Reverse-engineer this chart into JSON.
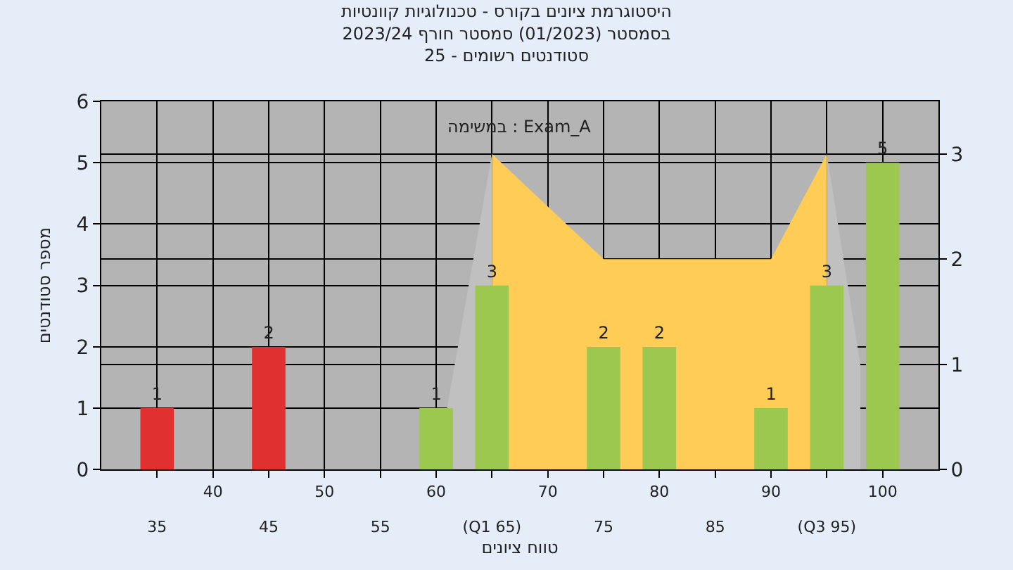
{
  "chart_data": {
    "type": "bar",
    "title": "היסטוגרמת ציונים בקורס - טכנולוגיות קוונטיות\nבסמסטר (01/2023) סמסטר חורף 2023/24\nסטודנטים רשומים - 25",
    "xlabel": "טווח ציונים",
    "ylabel": "מספר סטודנטים",
    "annotations": [
      "במשימה : Exam_A"
    ],
    "x": [
      35,
      45,
      60,
      65,
      75,
      80,
      90,
      95,
      100
    ],
    "series": [
      {
        "type": "area",
        "axis": "y2",
        "color": "#c0c0c0",
        "x": [
          60,
          65
        ],
        "values": [
          0,
          3
        ]
      },
      {
        "type": "area",
        "axis": "y2",
        "color": "#c0c0c0",
        "x": [
          95,
          98
        ],
        "values": [
          3,
          1
        ]
      },
      {
        "type": "area",
        "axis": "y2",
        "color": "#ffcc55",
        "x": [
          65,
          75,
          90,
          95
        ],
        "values": [
          3,
          2,
          2,
          3
        ]
      },
      {
        "values": [
          1,
          2,
          1,
          3,
          2,
          2,
          1,
          3,
          5
        ],
        "colors": [
          "#e03030",
          "#e03030",
          "#9cc850",
          "#9cc850",
          "#9cc850",
          "#9cc850",
          "#9cc850",
          "#9cc850",
          "#9cc850"
        ],
        "value_labels": [
          "1",
          "2",
          "1",
          "3",
          "2",
          "2",
          "1",
          "3",
          "5"
        ]
      }
    ],
    "xlim": [
      30,
      105
    ],
    "xticks": [
      {
        "value": 35,
        "label": null
      },
      40,
      {
        "value": 45,
        "label": null
      },
      50,
      {
        "value": 55,
        "label": null
      },
      60,
      {
        "value": 65,
        "label": null
      },
      70,
      {
        "value": 75,
        "label": null
      },
      80,
      {
        "value": 85,
        "label": null
      },
      90,
      {
        "value": 95,
        "label": null
      },
      100
    ],
    "x2lim": [
      30,
      105
    ],
    "x2ticks": [
      35,
      45,
      55,
      {
        "value": 65,
        "label": "(Q1 65)"
      },
      75,
      85,
      {
        "value": 95,
        "label": "(Q3 95)"
      }
    ],
    "ylim": [
      0,
      6
    ],
    "yticks": [
      0,
      1,
      2,
      3,
      4,
      5,
      6
    ],
    "y2lim": [
      0,
      3.5
    ],
    "y2ticks": [
      0,
      1,
      2,
      3
    ],
    "grid": true
  }
}
